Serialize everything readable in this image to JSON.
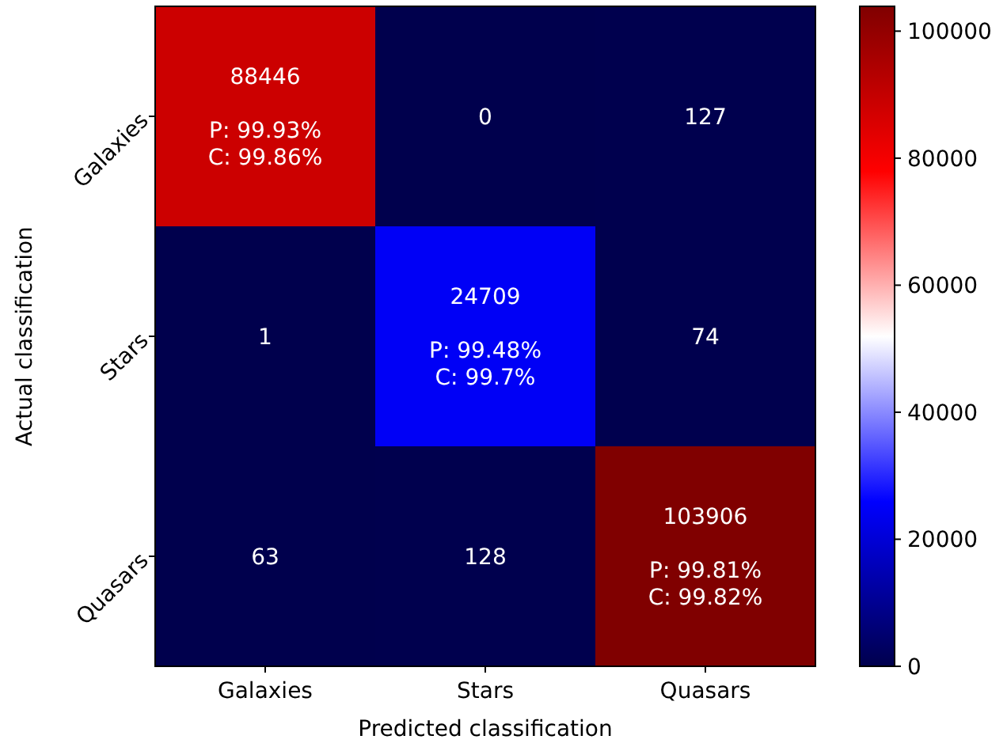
{
  "chart_data": {
    "type": "heatmap",
    "xlabel": "Predicted classification",
    "ylabel": "Actual classification",
    "categories": [
      "Galaxies",
      "Stars",
      "Quasars"
    ],
    "y_categories": [
      "Galaxies",
      "Stars",
      "Quasars"
    ],
    "cells": [
      [
        88446,
        0,
        127
      ],
      [
        1,
        24709,
        74
      ],
      [
        63,
        128,
        103906
      ]
    ],
    "cell_labels": [
      [
        "88446\n\nP: 99.93%\nC: 99.86%",
        "0",
        "127"
      ],
      [
        "1",
        "24709\n\nP: 99.48%\nC: 99.7%",
        "74"
      ],
      [
        "63",
        "128",
        "103906\n\nP: 99.81%\nC: 99.82%"
      ]
    ],
    "clim": [
      0,
      103906
    ],
    "cticks": [
      0,
      20000,
      40000,
      60000,
      80000,
      100000
    ]
  }
}
